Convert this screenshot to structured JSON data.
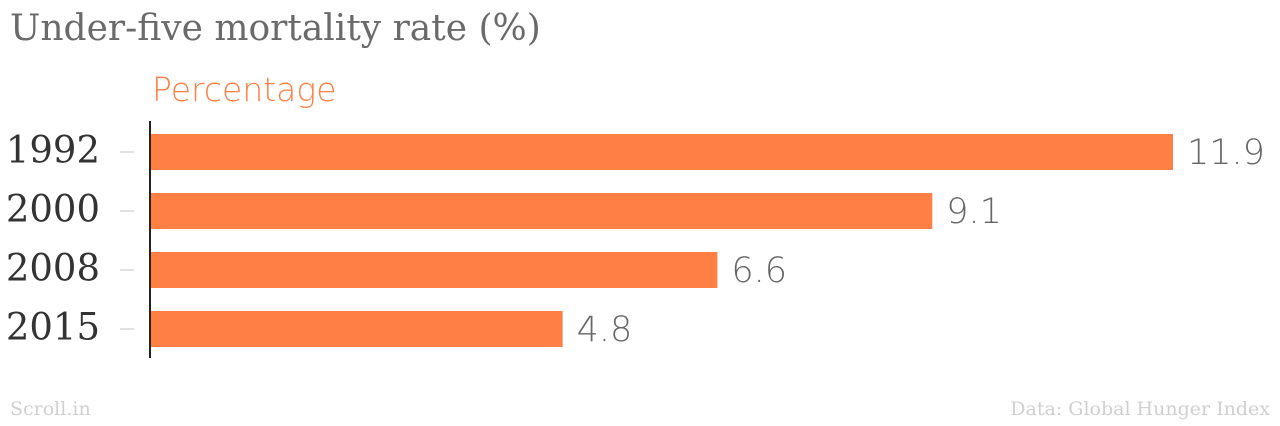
{
  "chart_data": {
    "type": "bar",
    "orientation": "horizontal",
    "title": "Under-five mortality rate (%)",
    "categories": [
      "1992",
      "2000",
      "2008",
      "2015"
    ],
    "series": [
      {
        "name": "Percentage",
        "values": [
          11.9,
          9.1,
          6.6,
          4.8
        ]
      }
    ],
    "data_labels": [
      "11.9",
      "9.1",
      "6.6",
      "4.8"
    ],
    "xlim": [
      0,
      11.9
    ],
    "grid": false,
    "bar_color": "#ff7f45",
    "axis_color": "#222222",
    "label_color": "#666666"
  },
  "footer": {
    "source_left": "Scroll.in",
    "source_right": "Data: Global Hunger Index"
  }
}
